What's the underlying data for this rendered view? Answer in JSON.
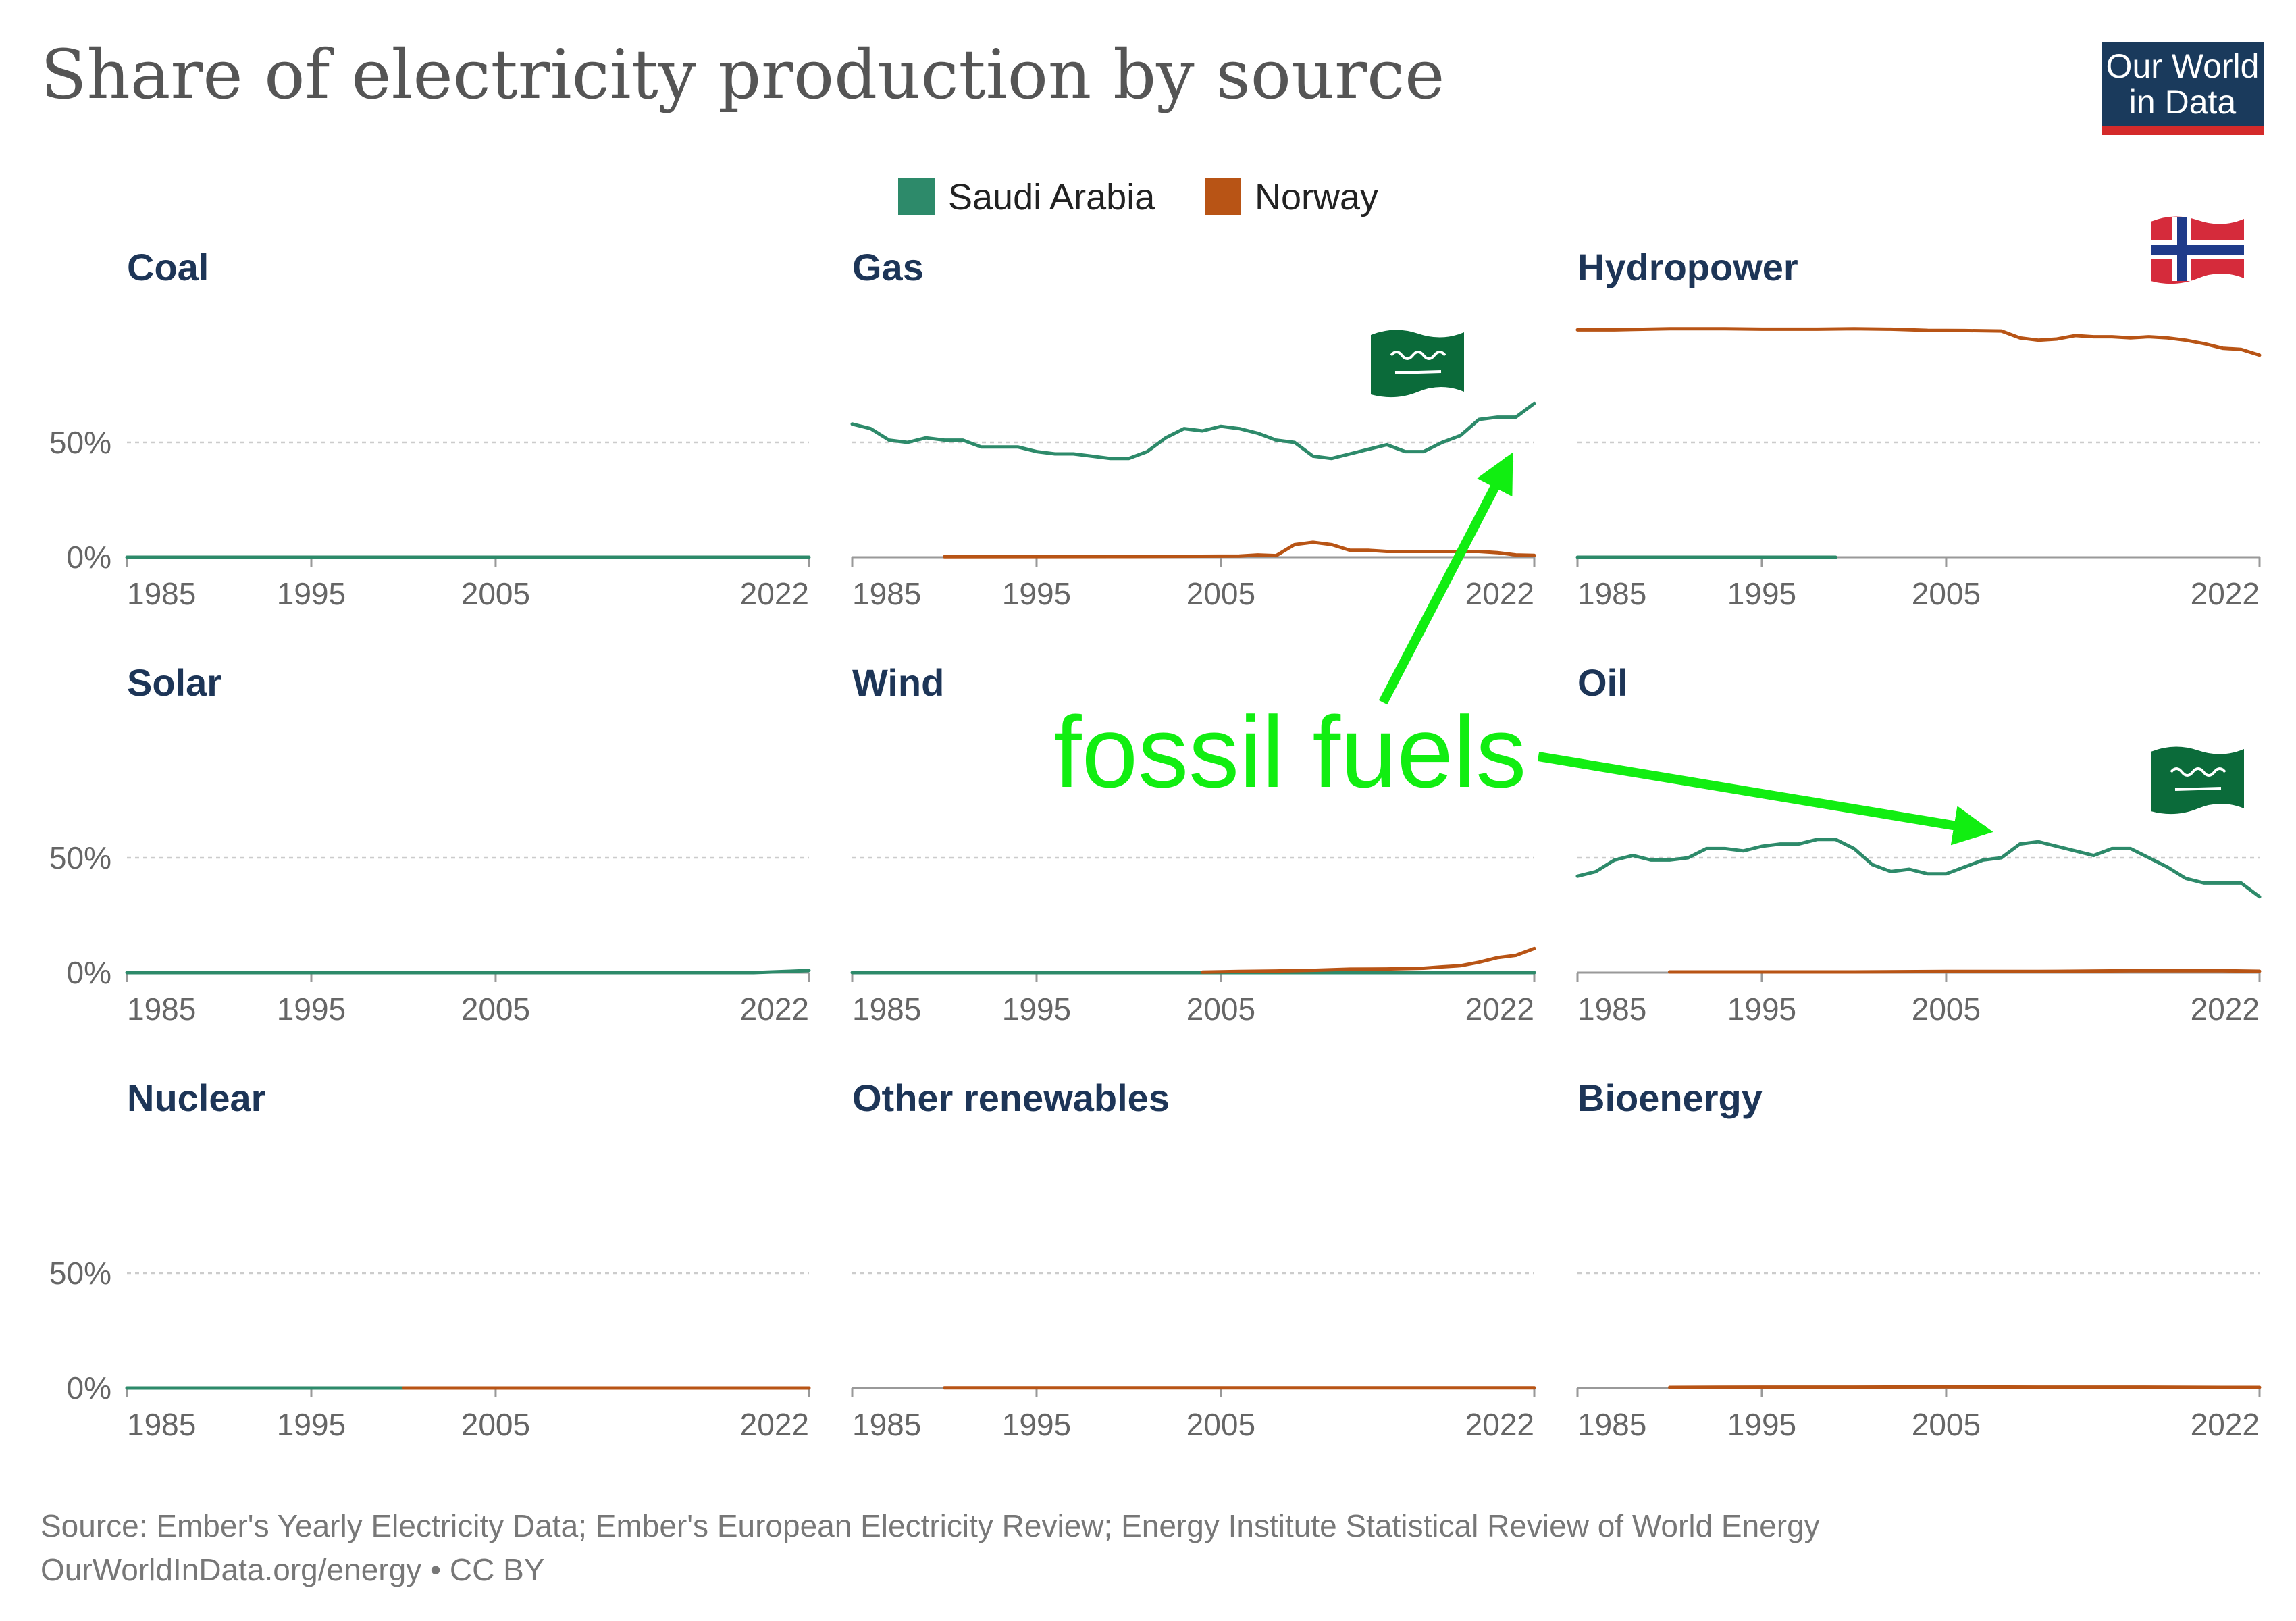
{
  "header": {
    "title": "Share of electricity production by source",
    "logo_line1": "Our World",
    "logo_line2": "in Data"
  },
  "colors": {
    "saudi": "#2d8a6a",
    "norway": "#b85415",
    "title_text": "#1d3557",
    "logo_bg": "#1a3a5c",
    "logo_stripe": "#d42a2a",
    "annotation": "#11ee11"
  },
  "legend": [
    {
      "name": "Saudi Arabia",
      "color_key": "saudi"
    },
    {
      "name": "Norway",
      "color_key": "norway"
    }
  ],
  "annotation": {
    "text": "fossil fuels",
    "arrow_targets": [
      "Gas",
      "Oil"
    ]
  },
  "flags": [
    {
      "panel": "Gas",
      "country": "Saudi Arabia",
      "icon": "saudi-arabia-flag-icon"
    },
    {
      "panel": "Hydropower",
      "country": "Norway",
      "icon": "norway-flag-icon"
    },
    {
      "panel": "Oil",
      "country": "Saudi Arabia",
      "icon": "saudi-arabia-flag-icon"
    }
  ],
  "chart_data": {
    "type": "line",
    "layout": "small-multiples 3x3",
    "x_ticks": [
      "1985",
      "1995",
      "2005",
      "2022"
    ],
    "y_ticks": [
      "0%",
      "50%"
    ],
    "xlim": [
      1985,
      2022
    ],
    "ylim": [
      0,
      100
    ],
    "grid": true,
    "legend_position": "top-center",
    "panels": [
      {
        "name": "Coal",
        "series": [
          {
            "name": "Saudi Arabia",
            "x": [
              1985,
              2022
            ],
            "y": [
              0,
              0
            ]
          }
        ]
      },
      {
        "name": "Gas",
        "series": [
          {
            "name": "Saudi Arabia",
            "x": [
              1985,
              1986,
              1987,
              1988,
              1989,
              1990,
              1991,
              1992,
              1993,
              1994,
              1995,
              1996,
              1997,
              1998,
              1999,
              2000,
              2001,
              2002,
              2003,
              2004,
              2005,
              2006,
              2007,
              2008,
              2009,
              2010,
              2011,
              2012,
              2013,
              2014,
              2015,
              2016,
              2017,
              2018,
              2019,
              2020,
              2021,
              2022
            ],
            "y": [
              58,
              56,
              51,
              50,
              52,
              51,
              51,
              48,
              48,
              48,
              46,
              45,
              45,
              44,
              43,
              43,
              46,
              52,
              56,
              55,
              57,
              56,
              54,
              51,
              50,
              44,
              43,
              45,
              47,
              49,
              46,
              46,
              50,
              53,
              60,
              61,
              61,
              67
            ]
          },
          {
            "name": "Norway",
            "x": [
              1990,
              2000,
              2006,
              2007,
              2008,
              2009,
              2010,
              2011,
              2012,
              2013,
              2014,
              2015,
              2016,
              2017,
              2018,
              2019,
              2020,
              2021,
              2022
            ],
            "y": [
              0.2,
              0.3,
              0.5,
              1.0,
              0.7,
              5.5,
              6.5,
              5.5,
              3.0,
              3.0,
              2.5,
              2.5,
              2.5,
              2.5,
              2.5,
              2.5,
              2.0,
              1.0,
              0.8
            ]
          }
        ]
      },
      {
        "name": "Hydropower",
        "series": [
          {
            "name": "Saudi Arabia",
            "x": [
              1985,
              1999
            ],
            "y": [
              0,
              0
            ]
          },
          {
            "name": "Norway",
            "x": [
              1985,
              1987,
              1990,
              1993,
              1995,
              1998,
              2000,
              2002,
              2004,
              2006,
              2008,
              2009,
              2010,
              2011,
              2012,
              2013,
              2014,
              2015,
              2016,
              2017,
              2018,
              2019,
              2020,
              2021,
              2022
            ],
            "y": [
              99,
              99,
              99.5,
              99.5,
              99.3,
              99.3,
              99.5,
              99.3,
              98.8,
              98.7,
              98.5,
              95.5,
              94.5,
              95,
              96.5,
              96,
              96,
              95.5,
              96,
              95.5,
              94.5,
              93,
              91,
              90.5,
              88
            ]
          }
        ]
      },
      {
        "name": "Solar",
        "series": [
          {
            "name": "Saudi Arabia",
            "x": [
              1985,
              2019,
              2020,
              2021,
              2022
            ],
            "y": [
              0,
              0,
              0.3,
              0.6,
              0.9
            ]
          }
        ]
      },
      {
        "name": "Wind",
        "series": [
          {
            "name": "Saudi Arabia",
            "x": [
              1985,
              2022
            ],
            "y": [
              0,
              0
            ]
          },
          {
            "name": "Norway",
            "x": [
              2004,
              2006,
              2008,
              2010,
              2012,
              2014,
              2016,
              2017,
              2018,
              2019,
              2020,
              2021,
              2022
            ],
            "y": [
              0.2,
              0.5,
              0.7,
              1.0,
              1.5,
              1.6,
              1.9,
              2.5,
              3.0,
              4.5,
              6.5,
              7.5,
              10.5
            ]
          }
        ]
      },
      {
        "name": "Oil",
        "series": [
          {
            "name": "Saudi Arabia",
            "x": [
              1985,
              1986,
              1987,
              1988,
              1989,
              1990,
              1991,
              1992,
              1993,
              1994,
              1995,
              1996,
              1997,
              1998,
              1999,
              2000,
              2001,
              2002,
              2003,
              2004,
              2005,
              2006,
              2007,
              2008,
              2009,
              2010,
              2011,
              2012,
              2013,
              2014,
              2015,
              2016,
              2017,
              2018,
              2019,
              2020,
              2021,
              2022
            ],
            "y": [
              42,
              44,
              49,
              51,
              49,
              49,
              50,
              54,
              54,
              53,
              55,
              56,
              56,
              58,
              58,
              54,
              47,
              44,
              45,
              43,
              43,
              46,
              49,
              50,
              56,
              57,
              55,
              53,
              51,
              54,
              54,
              50,
              46,
              41,
              39,
              39,
              39,
              33
            ]
          },
          {
            "name": "Norway",
            "x": [
              1990,
              2000,
              2005,
              2010,
              2015,
              2020,
              2022
            ],
            "y": [
              0.3,
              0.3,
              0.5,
              0.5,
              0.8,
              0.8,
              0.6
            ]
          }
        ]
      },
      {
        "name": "Nuclear",
        "series": [
          {
            "name": "Saudi Arabia",
            "x": [
              1985,
              2000
            ],
            "y": [
              0,
              0
            ]
          },
          {
            "name": "Norway",
            "x": [
              2000,
              2022
            ],
            "y": [
              0,
              0
            ]
          }
        ]
      },
      {
        "name": "Other renewables",
        "series": [
          {
            "name": "Norway",
            "x": [
              1990,
              2022
            ],
            "y": [
              0.1,
              0.1
            ]
          }
        ]
      },
      {
        "name": "Bioenergy",
        "series": [
          {
            "name": "Norway",
            "x": [
              1990,
              1995,
              2000,
              2005,
              2010,
              2015,
              2020,
              2022
            ],
            "y": [
              0.3,
              0.4,
              0.4,
              0.5,
              0.4,
              0.4,
              0.3,
              0.3
            ]
          }
        ]
      }
    ]
  },
  "footer": {
    "source_line": "Source: Ember's Yearly Electricity Data; Ember's European Electricity Review; Energy Institute Statistical Review of World Energy",
    "link_line": "OurWorldInData.org/energy • CC BY"
  }
}
